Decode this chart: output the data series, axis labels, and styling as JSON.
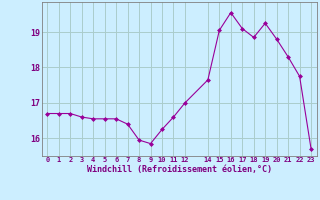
{
  "x": [
    0,
    1,
    2,
    3,
    4,
    5,
    6,
    7,
    8,
    9,
    10,
    11,
    12,
    14,
    15,
    16,
    17,
    18,
    19,
    20,
    21,
    22,
    23
  ],
  "y": [
    16.7,
    16.7,
    16.7,
    16.6,
    16.55,
    16.55,
    16.55,
    16.4,
    15.95,
    15.85,
    16.25,
    16.6,
    17.0,
    17.65,
    19.05,
    19.55,
    19.1,
    18.85,
    19.25,
    18.8,
    18.3,
    17.75,
    15.7
  ],
  "line_color": "#990099",
  "marker": "D",
  "marker_size": 2.0,
  "bg_color": "#cceeff",
  "grid_color": "#aacccc",
  "tick_color": "#800080",
  "label_color": "#800080",
  "xlabel": "Windchill (Refroidissement éolien,°C)",
  "ylim": [
    15.5,
    19.85
  ],
  "xlim": [
    -0.5,
    23.5
  ],
  "yticks": [
    16,
    17,
    18,
    19
  ],
  "xticks": [
    0,
    1,
    2,
    3,
    4,
    5,
    6,
    7,
    8,
    9,
    10,
    11,
    12,
    14,
    15,
    16,
    17,
    18,
    19,
    20,
    21,
    22,
    23
  ],
  "xtick_labels": [
    "0",
    "1",
    "2",
    "3",
    "4",
    "5",
    "6",
    "7",
    "8",
    "9",
    "10",
    "11",
    "12",
    "14",
    "15",
    "16",
    "17",
    "18",
    "19",
    "20",
    "21",
    "22",
    "23"
  ]
}
